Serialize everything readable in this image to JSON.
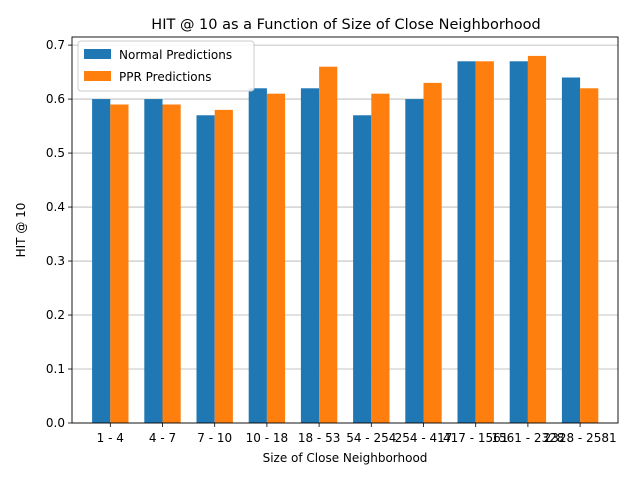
{
  "chart_data": {
    "type": "bar",
    "title": "HIT @ 10 as a Function of Size of Close Neighborhood",
    "xlabel": "Size of Close Neighborhood",
    "ylabel": "HIT @ 10",
    "categories": [
      "1 - 4",
      "4 - 7",
      "7 - 10",
      "10 - 18",
      "18 - 53",
      "54 - 254",
      "254 - 417",
      "417 - 1561",
      "1561 - 2328",
      "2328 - 2581"
    ],
    "series": [
      {
        "name": "Normal Predictions",
        "color": "#1f77b4",
        "values": [
          0.6,
          0.6,
          0.57,
          0.62,
          0.62,
          0.57,
          0.6,
          0.67,
          0.67,
          0.64
        ]
      },
      {
        "name": "PPR Predictions",
        "color": "#ff7f0e",
        "values": [
          0.59,
          0.59,
          0.58,
          0.61,
          0.66,
          0.61,
          0.63,
          0.67,
          0.68,
          0.62
        ]
      }
    ],
    "ylim": [
      0,
      0.715
    ],
    "yticks": [
      "0.0",
      "0.1",
      "0.2",
      "0.3",
      "0.4",
      "0.5",
      "0.6",
      "0.7"
    ],
    "grid": "horizontal",
    "legend": "top-left"
  }
}
